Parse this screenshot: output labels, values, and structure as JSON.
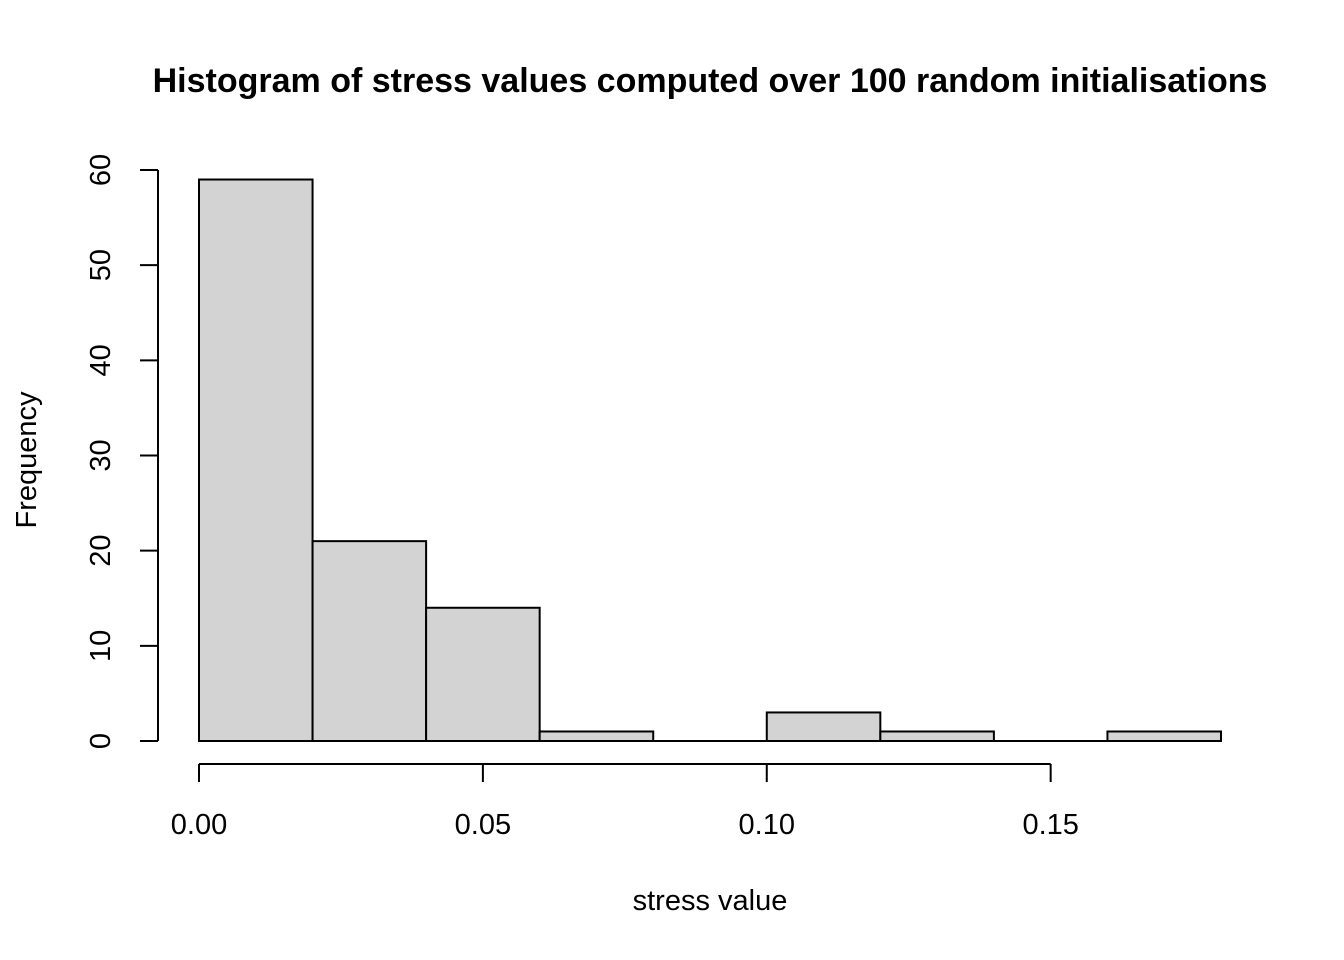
{
  "chart_data": {
    "type": "bar",
    "title": "Histogram of stress values computed over 100 random initialisations",
    "xlabel": "stress value",
    "ylabel": "Frequency",
    "bins": [
      {
        "start": 0.0,
        "end": 0.02,
        "count": 59
      },
      {
        "start": 0.02,
        "end": 0.04,
        "count": 21
      },
      {
        "start": 0.04,
        "end": 0.06,
        "count": 14
      },
      {
        "start": 0.06,
        "end": 0.08,
        "count": 1
      },
      {
        "start": 0.08,
        "end": 0.1,
        "count": 0
      },
      {
        "start": 0.1,
        "end": 0.12,
        "count": 3
      },
      {
        "start": 0.12,
        "end": 0.14,
        "count": 1
      },
      {
        "start": 0.14,
        "end": 0.16,
        "count": 0
      },
      {
        "start": 0.16,
        "end": 0.18,
        "count": 1
      }
    ],
    "xlim": [
      0,
      0.18
    ],
    "ylim": [
      0,
      60
    ],
    "x_ticks": [
      {
        "value": 0.0,
        "label": "0.00"
      },
      {
        "value": 0.05,
        "label": "0.05"
      },
      {
        "value": 0.1,
        "label": "0.10"
      },
      {
        "value": 0.15,
        "label": "0.15"
      }
    ],
    "y_ticks": [
      {
        "value": 0,
        "label": "0"
      },
      {
        "value": 10,
        "label": "10"
      },
      {
        "value": 20,
        "label": "20"
      },
      {
        "value": 30,
        "label": "30"
      },
      {
        "value": 40,
        "label": "40"
      },
      {
        "value": 50,
        "label": "50"
      },
      {
        "value": 60,
        "label": "60"
      }
    ],
    "bar_color": "#d3d3d3",
    "grid": false,
    "legend": "none"
  }
}
